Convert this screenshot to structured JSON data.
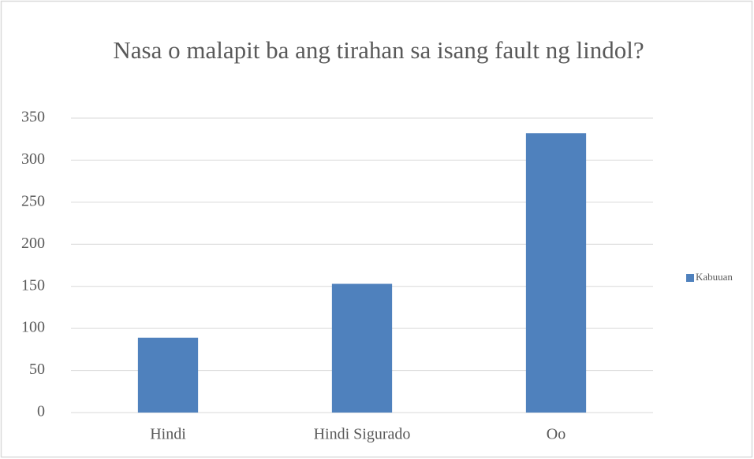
{
  "chart_data": {
    "type": "bar",
    "title": "Nasa o malapit ba ang tirahan sa isang fault ng lindol?",
    "categories": [
      "Hindi",
      "Hindi Sigurado",
      "Oo"
    ],
    "series": [
      {
        "name": "Kabuuan",
        "color": "#4f81bd",
        "values": [
          89,
          153,
          332
        ]
      }
    ],
    "ylim": [
      0,
      350
    ],
    "yticks": [
      0,
      50,
      100,
      150,
      200,
      250,
      300,
      350
    ],
    "grid": true,
    "legend": "right"
  }
}
